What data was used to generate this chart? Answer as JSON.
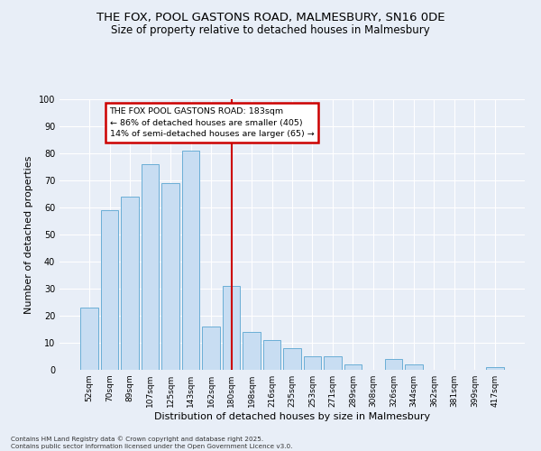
{
  "title_line1": "THE FOX, POOL GASTONS ROAD, MALMESBURY, SN16 0DE",
  "title_line2": "Size of property relative to detached houses in Malmesbury",
  "xlabel": "Distribution of detached houses by size in Malmesbury",
  "ylabel": "Number of detached properties",
  "categories": [
    "52sqm",
    "70sqm",
    "89sqm",
    "107sqm",
    "125sqm",
    "143sqm",
    "162sqm",
    "180sqm",
    "198sqm",
    "216sqm",
    "235sqm",
    "253sqm",
    "271sqm",
    "289sqm",
    "308sqm",
    "326sqm",
    "344sqm",
    "362sqm",
    "381sqm",
    "399sqm",
    "417sqm"
  ],
  "values": [
    23,
    59,
    64,
    76,
    69,
    81,
    16,
    31,
    14,
    11,
    8,
    5,
    5,
    2,
    0,
    4,
    2,
    0,
    0,
    0,
    1
  ],
  "bar_color": "#c8ddf2",
  "bar_edge_color": "#6aaed6",
  "annotation_text_line1": "THE FOX POOL GASTONS ROAD: 183sqm",
  "annotation_text_line2": "← 86% of detached houses are smaller (405)",
  "annotation_text_line3": "14% of semi-detached houses are larger (65) →",
  "annotation_box_color": "white",
  "annotation_box_edge_color": "#cc0000",
  "annotation_line_color": "#cc0000",
  "ylim": [
    0,
    100
  ],
  "yticks": [
    0,
    10,
    20,
    30,
    40,
    50,
    60,
    70,
    80,
    90,
    100
  ],
  "bg_color": "#e8eef7",
  "grid_color": "white",
  "footer_line1": "Contains HM Land Registry data © Crown copyright and database right 2025.",
  "footer_line2": "Contains public sector information licensed under the Open Government Licence v3.0."
}
